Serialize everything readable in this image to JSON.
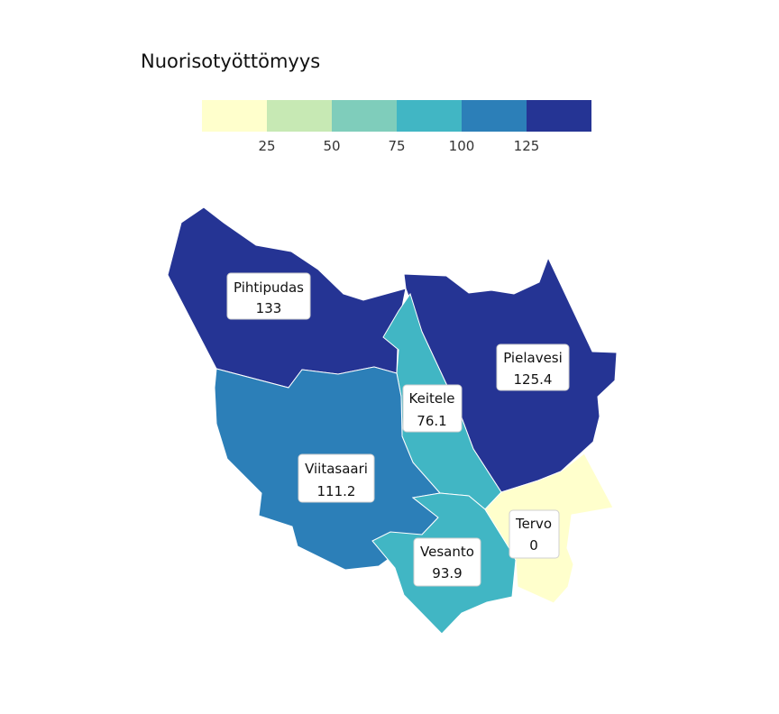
{
  "legend": {
    "title": "Nuorisotyöttömyys",
    "colors": [
      "#ffffcc",
      "#c7e9b4",
      "#7fcdbb",
      "#41b6c4",
      "#2c7fb8",
      "#253494"
    ],
    "ticks": [
      "25",
      "50",
      "75",
      "100",
      "125"
    ]
  },
  "regions": [
    {
      "name": "Pihtipudas",
      "value": "133",
      "color": "#253494"
    },
    {
      "name": "Pielavesi",
      "value": "125.4",
      "color": "#253494"
    },
    {
      "name": "Keitele",
      "value": "76.1",
      "color": "#41b6c4"
    },
    {
      "name": "Viitasaari",
      "value": "111.2",
      "color": "#2c7fb8"
    },
    {
      "name": "Vesanto",
      "value": "93.9",
      "color": "#41b6c4"
    },
    {
      "name": "Tervo",
      "value": "0",
      "color": "#ffffcc"
    }
  ]
}
